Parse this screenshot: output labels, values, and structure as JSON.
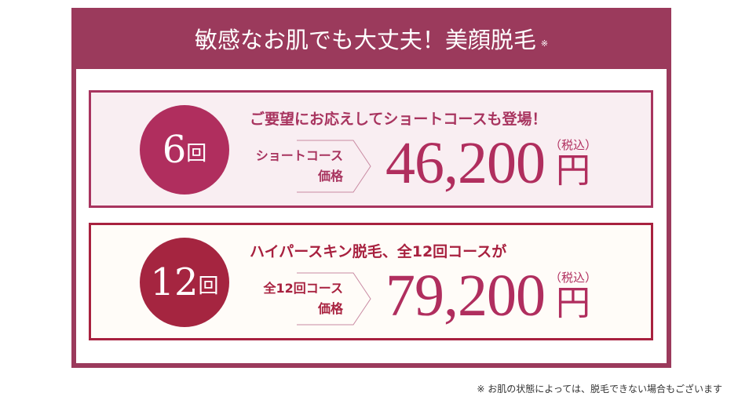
{
  "header": {
    "title": "敏感なお肌でも大丈夫！美顔脱毛",
    "mark": "※"
  },
  "plans": [
    {
      "count": "6",
      "unit": "回",
      "lead": "ご要望にお応えしてショートコースも登場！",
      "tag_line1": "ショートコース",
      "tag_line2": "価格",
      "price": "46,200",
      "yen": "円",
      "tax": "（税込）"
    },
    {
      "count": "12",
      "unit": "回",
      "lead": "ハイパースキン脱毛、全12回コースが",
      "tag_line1": "全12回コース",
      "tag_line2": "価格",
      "price": "79,200",
      "yen": "円",
      "tax": "（税込）"
    }
  ],
  "footnote": "※ お肌の状態によっては、脱毛できない場合もございます",
  "colors": {
    "header": "#9b3a5c",
    "plan1": "#a8345f",
    "plan2": "#a8213f",
    "price": "#b02e5e"
  }
}
